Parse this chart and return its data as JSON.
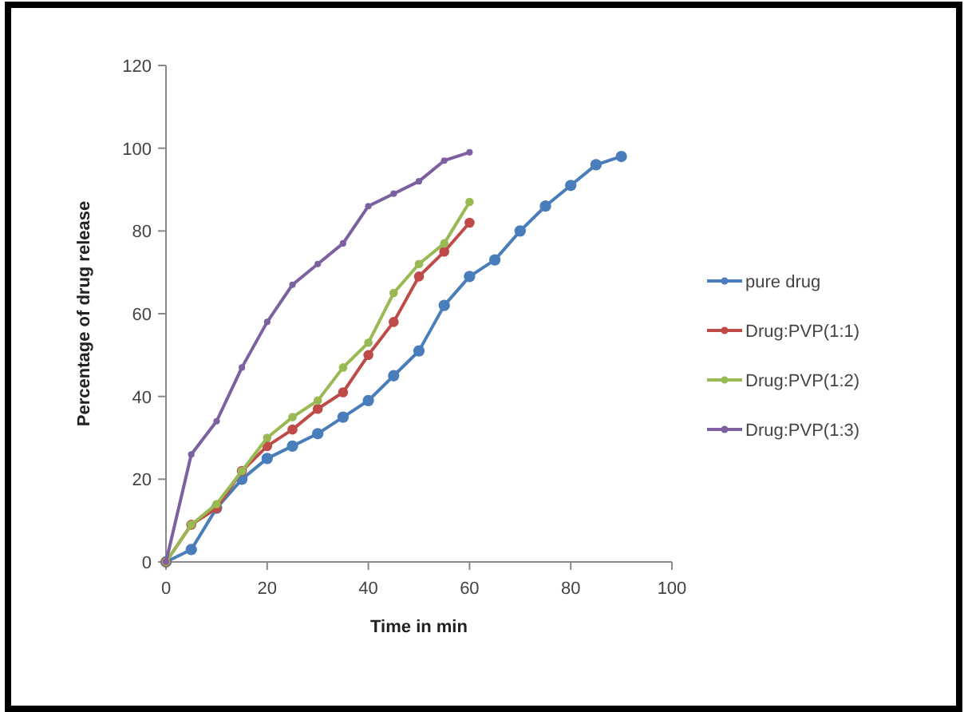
{
  "chart_data": {
    "type": "line",
    "xlabel": "Time in min",
    "ylabel": "Percentage of drug release",
    "xlim": [
      0,
      100
    ],
    "xticks": [
      0,
      20,
      40,
      60,
      80,
      100
    ],
    "ylim": [
      0,
      120
    ],
    "yticks": [
      0,
      20,
      40,
      60,
      80,
      100,
      120
    ],
    "grid": false,
    "legend": "right",
    "marker": "circle",
    "line_style": "solid",
    "series": [
      {
        "name": "pure drug",
        "color": "#4a7ebb",
        "x": [
          0,
          5,
          10,
          15,
          20,
          25,
          30,
          35,
          40,
          45,
          50,
          55,
          60,
          65,
          70,
          75,
          80,
          85,
          90
        ],
        "values": [
          0,
          3,
          13,
          20,
          25,
          28,
          31,
          35,
          39,
          45,
          51,
          62,
          69,
          73,
          80,
          86,
          91,
          96,
          98
        ]
      },
      {
        "name": "Drug:PVP(1:1)",
        "color": "#be4b48",
        "x": [
          0,
          5,
          10,
          15,
          20,
          25,
          30,
          35,
          40,
          45,
          50,
          55,
          60
        ],
        "values": [
          0,
          9,
          13,
          22,
          28,
          32,
          37,
          41,
          50,
          58,
          69,
          75,
          82
        ]
      },
      {
        "name": "Drug:PVP(1:2)",
        "color": "#98b954",
        "x": [
          0,
          5,
          10,
          15,
          20,
          25,
          30,
          35,
          40,
          45,
          50,
          55,
          60
        ],
        "values": [
          0,
          9,
          14,
          22,
          30,
          35,
          39,
          47,
          53,
          65,
          72,
          77,
          87
        ]
      },
      {
        "name": "Drug:PVP(1:3)",
        "color": "#7d60a0",
        "x": [
          0,
          5,
          10,
          15,
          20,
          25,
          30,
          35,
          40,
          45,
          50,
          55,
          60
        ],
        "values": [
          0,
          26,
          34,
          47,
          58,
          67,
          72,
          77,
          86,
          89,
          92,
          97,
          99
        ]
      }
    ]
  }
}
